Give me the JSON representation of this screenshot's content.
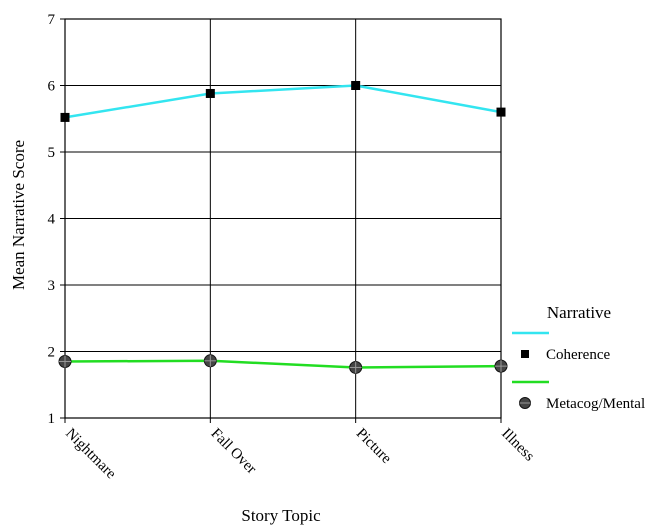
{
  "chart_data": {
    "type": "line",
    "title": "",
    "xlabel": "Story Topic",
    "ylabel": "Mean Narrative Score",
    "categories": [
      "Nightmare",
      "Fall Over",
      "Picture",
      "Illness"
    ],
    "ylim": [
      1,
      7
    ],
    "yticks": [
      1,
      2,
      3,
      4,
      5,
      6,
      7
    ],
    "grid": true,
    "legend_position": "right",
    "legend_title": "Narrative",
    "series": [
      {
        "name": "Coherence",
        "values": [
          5.52,
          5.88,
          6.0,
          5.6
        ],
        "color": "#33e5f0",
        "marker": "square"
      },
      {
        "name": "Metacog/Mental",
        "values": [
          1.85,
          1.86,
          1.76,
          1.78
        ],
        "color": "#22dd22",
        "marker": "circle"
      }
    ]
  }
}
